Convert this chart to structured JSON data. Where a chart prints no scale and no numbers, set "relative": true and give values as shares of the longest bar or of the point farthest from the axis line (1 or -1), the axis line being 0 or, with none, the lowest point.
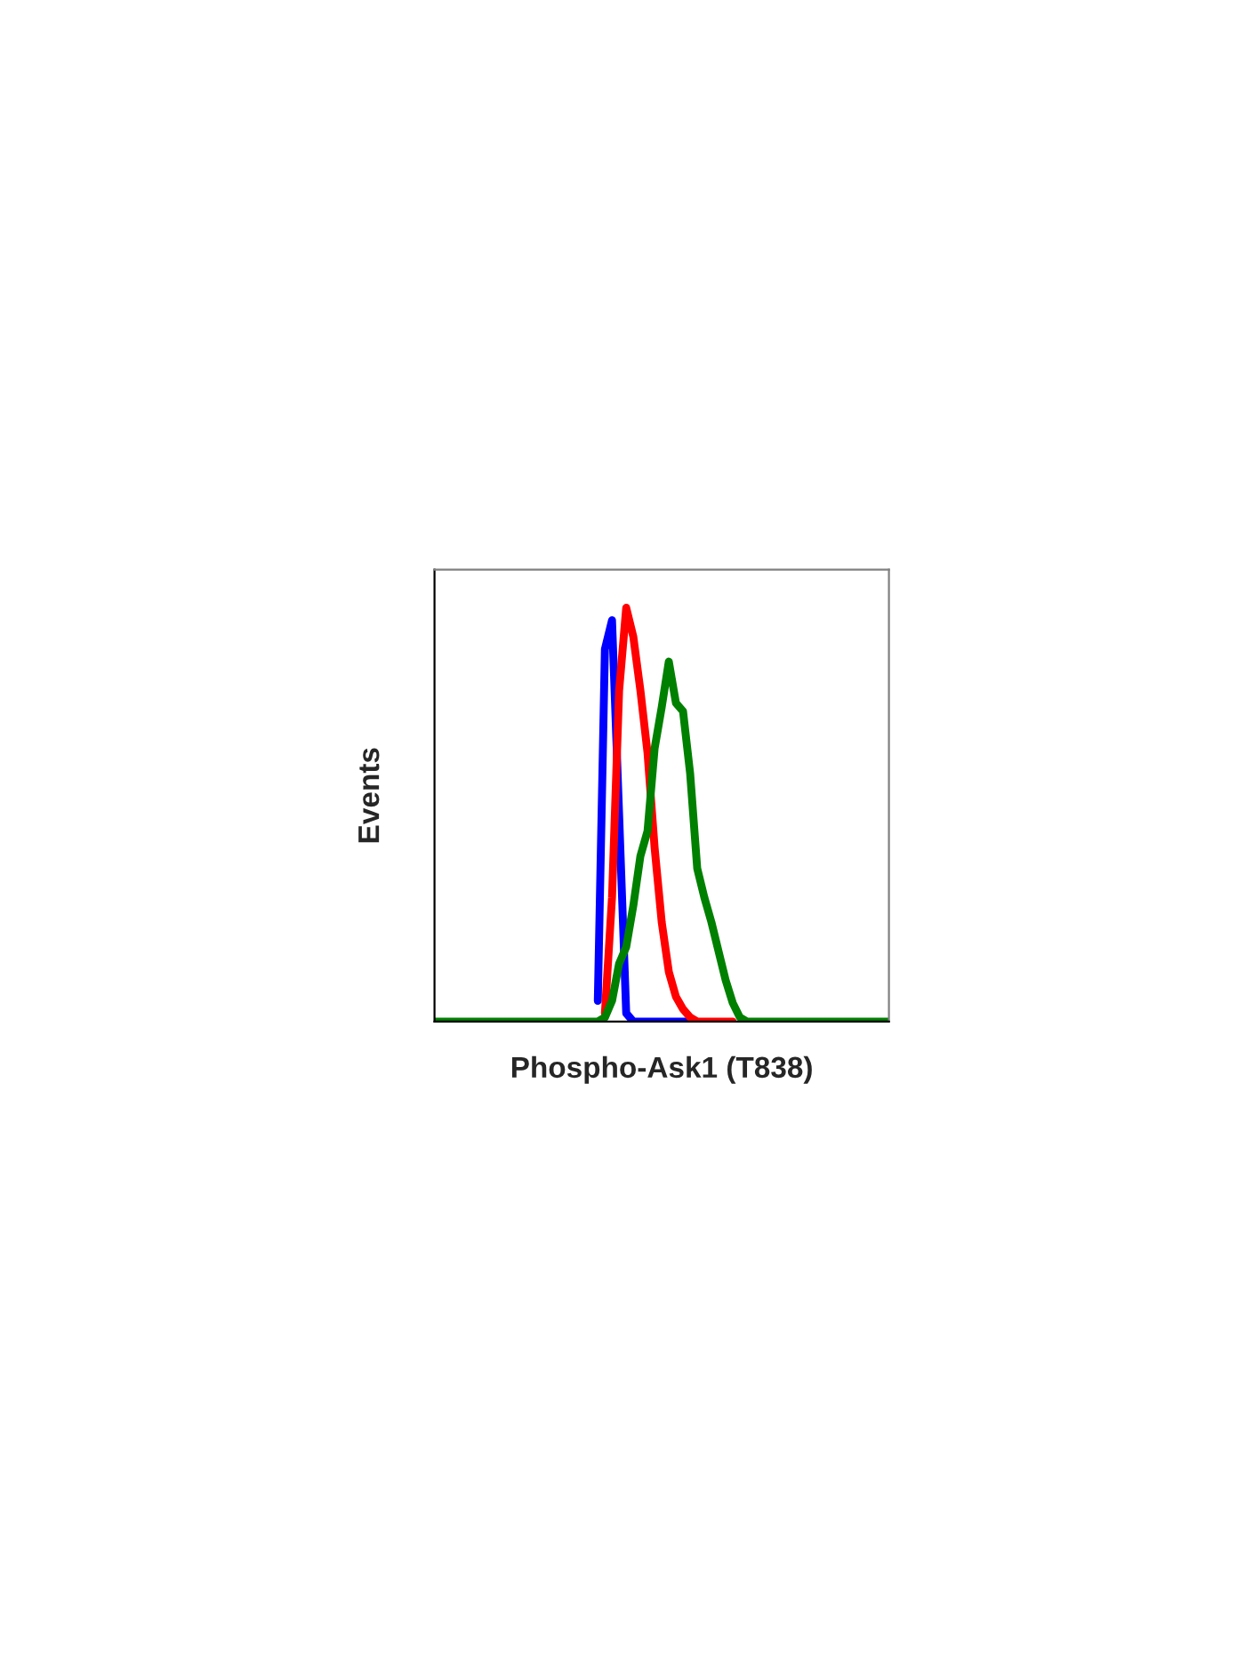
{
  "chart_data": {
    "type": "line",
    "relative": true,
    "xlabel": "Phospho-Ask1 (T838)",
    "ylabel": "Events",
    "legend": false,
    "categories": [
      null,
      null,
      null,
      null,
      null,
      null,
      null,
      null,
      null,
      null,
      null,
      null,
      null,
      null,
      null,
      null,
      null,
      null,
      null,
      null,
      null,
      null,
      null,
      null,
      null,
      null,
      null,
      null,
      null,
      null,
      null,
      null,
      null,
      null,
      null,
      null,
      null,
      null,
      null,
      null,
      null,
      null,
      null,
      null,
      null,
      null,
      null,
      null,
      null,
      null,
      null,
      null,
      null,
      null,
      null,
      null,
      null,
      null,
      null,
      null,
      null,
      null,
      null,
      null,
      null
    ],
    "series": [
      {
        "color": "#0000ff",
        "values": [
          null,
          null,
          null,
          null,
          null,
          null,
          null,
          null,
          null,
          null,
          null,
          null,
          null,
          null,
          null,
          null,
          null,
          null,
          null,
          null,
          null,
          null,
          null,
          0.05,
          0.9,
          0.97,
          0.5,
          0.02,
          0,
          0,
          0,
          0,
          0,
          0,
          0,
          0,
          0,
          null,
          null,
          null,
          null,
          null,
          null,
          null,
          null,
          null,
          null,
          null,
          null,
          null,
          null,
          null,
          null,
          null,
          null,
          null,
          null,
          null,
          null,
          null,
          null,
          null,
          null,
          null,
          null
        ]
      },
      {
        "color": "#ff0000",
        "values": [
          null,
          null,
          null,
          null,
          null,
          null,
          null,
          null,
          null,
          null,
          null,
          null,
          null,
          null,
          null,
          null,
          null,
          null,
          null,
          null,
          null,
          null,
          null,
          null,
          0.02,
          0.3,
          0.8,
          1.0,
          0.93,
          0.8,
          0.65,
          0.42,
          0.24,
          0.12,
          0.06,
          0.03,
          0.01,
          0,
          0,
          0,
          0,
          0,
          0,
          null,
          null,
          null,
          null,
          null,
          null,
          null,
          null,
          null,
          null,
          null,
          null,
          null,
          null,
          null,
          null,
          null,
          null,
          null,
          null,
          null,
          null
        ]
      },
      {
        "color": "#008000",
        "values": [
          0,
          0,
          0,
          0,
          0,
          0,
          0,
          0,
          0,
          0,
          0,
          0,
          0,
          0,
          0,
          0,
          0,
          0,
          0,
          0,
          0,
          0,
          0,
          0,
          0.01,
          0.05,
          0.14,
          0.18,
          0.28,
          0.4,
          0.46,
          0.66,
          0.76,
          0.87,
          0.77,
          0.75,
          0.6,
          0.37,
          0.3,
          0.24,
          0.17,
          0.1,
          0.045,
          0.01,
          0,
          0,
          0,
          0,
          0,
          0,
          0,
          0,
          0,
          0,
          0,
          0,
          0,
          0,
          0,
          0,
          0,
          0,
          0,
          0,
          0
        ]
      }
    ]
  }
}
